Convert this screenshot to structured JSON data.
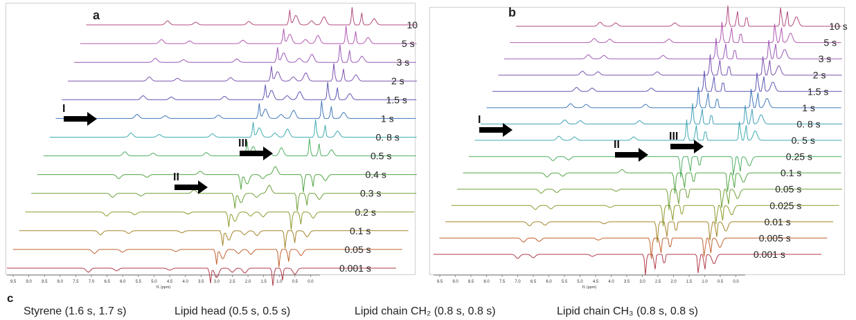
{
  "chart_data": [
    {
      "type": "line",
      "panel_label": "a",
      "xlabel": "f1 (ppm)",
      "xlim": [
        9.7,
        -0.3
      ],
      "x_reversed": true,
      "x_ticks": [
        "9.5",
        "9.0",
        "8.5",
        "8.0",
        "7.5",
        "7.0",
        "6.5",
        "6.0",
        "5.5",
        "5.0",
        "4.5",
        "4.0",
        "3.5",
        "3.0",
        "2.5",
        "2.0",
        "1.5",
        "1.0",
        "0.5",
        "0.0"
      ],
      "series_labels_bottom_to_top": [
        "0.001 s",
        "0.05 s",
        "0.1 s",
        "0.2 s",
        "0.3 s",
        "0.4 s",
        "0.5 s",
        "0. 8 s",
        "1 s",
        "1.5 s",
        "2 s",
        "3 s",
        "5 s",
        "10 s"
      ],
      "series_colors_bottom_to_top": [
        "#b03a4a",
        "#c0612f",
        "#a38226",
        "#8e9a2c",
        "#6f9f37",
        "#52a544",
        "#4fae61",
        "#3faab0",
        "#3f78b8",
        "#5a55b2",
        "#7b52b0",
        "#9b57b8",
        "#b257b1",
        "#b14a7c"
      ],
      "annotations": [
        {
          "label": "I",
          "ppm": 7.8,
          "series": "1 s"
        },
        {
          "label": "III",
          "ppm": 1.9,
          "series": "0. 5 s"
        },
        {
          "label": "II",
          "ppm": 3.8,
          "series": "0.3 s"
        }
      ]
    },
    {
      "type": "line",
      "panel_label": "b",
      "xlabel": "f1 (ppm)",
      "xlim": [
        9.7,
        -0.3
      ],
      "x_reversed": true,
      "x_ticks": [
        "9.5",
        "9.0",
        "8.5",
        "8.0",
        "7.5",
        "7.0",
        "6.5",
        "6.0",
        "5.5",
        "5.0",
        "4.5",
        "4.0",
        "3.5",
        "3.0",
        "2.5",
        "2.0",
        "1.5",
        "1.0",
        "0.5",
        "0.0"
      ],
      "series_labels_bottom_to_top": [
        "0.001 s",
        "0.005 s",
        "0.01 s",
        "0.025 s",
        "0.05 s",
        "0.1 s",
        "0.25 s",
        "0. 5 s",
        "0. 8 s",
        "1 s",
        "1.5 s",
        "2 s",
        "3 s",
        "5 s",
        "10 s"
      ],
      "series_colors_bottom_to_top": [
        "#b03a4a",
        "#c0612f",
        "#a38226",
        "#8e9a2c",
        "#6f9f37",
        "#52a544",
        "#4fae61",
        "#3faab0",
        "#3f9eb8",
        "#3f78b8",
        "#5a55b2",
        "#7b52b0",
        "#9b57b8",
        "#b257b1",
        "#b14a7c"
      ],
      "annotations": [
        {
          "label": "I",
          "ppm": 7.2,
          "series": "0. 8 s"
        },
        {
          "label": "II",
          "ppm": 2.8,
          "series": "0. 5 s"
        },
        {
          "label": "III",
          "ppm": 1.1,
          "series": "0. 5 s"
        }
      ]
    }
  ],
  "caption": {
    "letter": "c",
    "items": [
      "Styrene (1.6 s, 1.7 s)",
      "Lipid head (0.5 s, 0.5 s)",
      "Lipid chain CH₂ (0.8 s, 0.8 s)",
      "Lipid chain CH₃ (0.8 s, 0.8 s)"
    ]
  }
}
